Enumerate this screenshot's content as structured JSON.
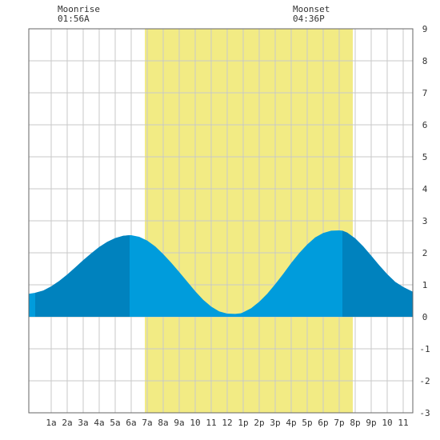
{
  "moon": {
    "rise_label": "Moonrise",
    "rise_time": "01:56A",
    "set_label": "Moonset",
    "set_time": "04:36P"
  },
  "chart_data": {
    "type": "area",
    "title": "",
    "xlabel": "",
    "ylabel": "",
    "xlim": [
      -0.4,
      23.6
    ],
    "ylim": [
      -3,
      9
    ],
    "x_ticks": [
      1,
      2,
      3,
      4,
      5,
      6,
      7,
      8,
      9,
      10,
      11,
      12,
      13,
      14,
      15,
      16,
      17,
      18,
      19,
      20,
      21,
      22,
      23
    ],
    "x_tick_labels": [
      "1a",
      "2a",
      "3a",
      "4a",
      "5a",
      "6a",
      "7a",
      "8a",
      "9a",
      "10",
      "11",
      "12",
      "1p",
      "2p",
      "3p",
      "4p",
      "5p",
      "6p",
      "7p",
      "8p",
      "9p",
      "10",
      "11"
    ],
    "y_ticks": [
      -3,
      -2,
      -1,
      0,
      1,
      2,
      3,
      4,
      5,
      6,
      7,
      8,
      9
    ],
    "y_tick_labels": [
      "-3",
      "-2",
      "-1",
      "0",
      "1",
      "2",
      "3",
      "4",
      "5",
      "6",
      "7",
      "8",
      "9"
    ],
    "grid": true,
    "daylight": {
      "start": 6.85,
      "end": 19.85,
      "color": "#f2eb84"
    },
    "series": [
      {
        "x": [
          -0.4,
          0.0,
          0.5,
          1.0,
          1.5,
          2.0,
          2.5,
          3.0,
          3.5,
          4.0,
          4.5,
          5.0,
          5.5,
          5.9,
          6.0,
          6.5,
          7.0,
          7.5,
          8.0,
          8.5,
          9.0,
          9.5,
          10.0,
          10.5,
          11.0,
          11.5,
          12.0,
          12.5,
          12.85,
          13.0,
          13.5,
          14.0,
          14.5,
          15.0,
          15.5,
          16.0,
          16.5,
          17.0,
          17.5,
          18.0,
          18.5,
          19.0,
          19.2,
          19.5,
          20.0,
          20.5,
          21.0,
          21.5,
          22.0,
          22.5,
          23.0,
          23.6
        ],
        "values": [
          0.72,
          0.75,
          0.82,
          0.95,
          1.12,
          1.32,
          1.54,
          1.77,
          1.98,
          2.18,
          2.34,
          2.46,
          2.53,
          2.55,
          2.55,
          2.5,
          2.38,
          2.2,
          1.96,
          1.69,
          1.4,
          1.1,
          0.8,
          0.53,
          0.32,
          0.17,
          0.1,
          0.09,
          0.11,
          0.14,
          0.27,
          0.47,
          0.72,
          1.02,
          1.34,
          1.68,
          1.99,
          2.26,
          2.48,
          2.62,
          2.69,
          2.7,
          2.69,
          2.63,
          2.45,
          2.2,
          1.91,
          1.61,
          1.33,
          1.09,
          0.93,
          0.78
        ]
      }
    ],
    "shade_bands": [
      {
        "start": 0.0,
        "end": 5.9,
        "color": "#0082be"
      },
      {
        "start": 19.2,
        "end": 23.6,
        "color": "#0082be"
      }
    ],
    "fill_color": "#009cdc",
    "grid_color": "#c8c8c8"
  }
}
